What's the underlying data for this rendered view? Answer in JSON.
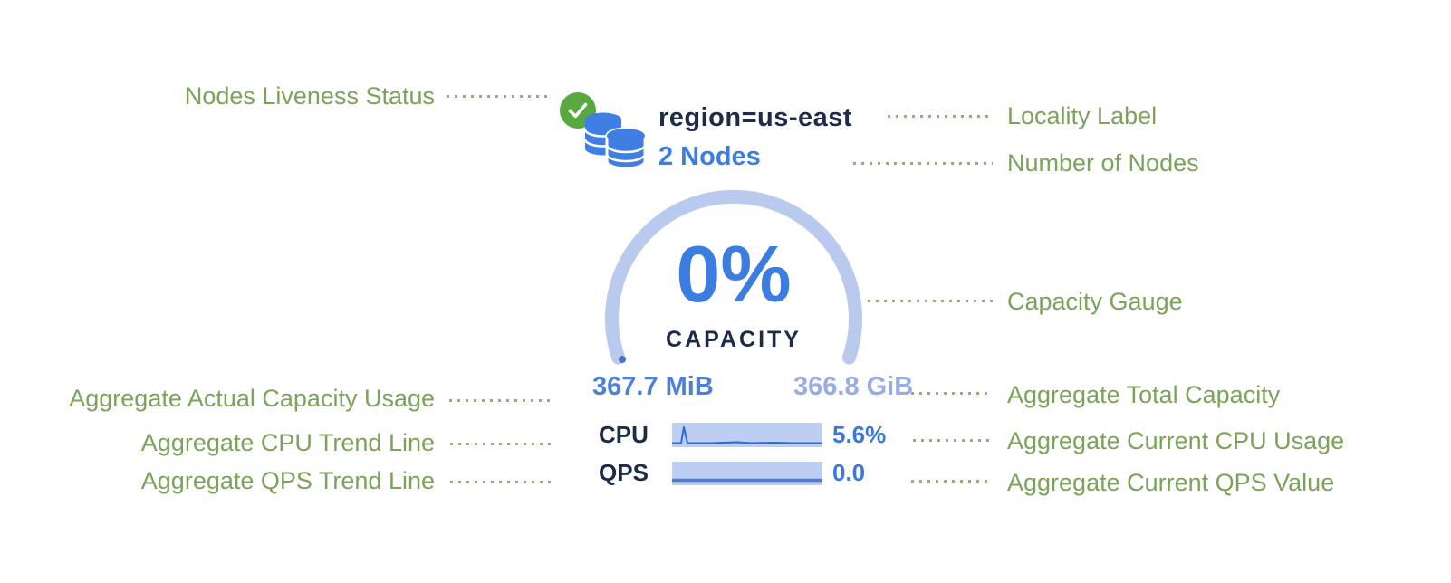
{
  "colors": {
    "annotation_green": "#7ba35a",
    "check_green": "#58a840",
    "icon_blue": "#3f7ee3",
    "navy": "#1c2b4a",
    "link_blue": "#3c7de2",
    "gauge_arc": "#bac9ee",
    "gauge_tick": "#4a74cc",
    "used_blue": "#4d80da",
    "total_blue": "#99ade4",
    "spark_fill": "#bccff2",
    "spark_line_cpu": "#2e68d9",
    "spark_line_qps": "#4a7bd9",
    "value_blue": "#3b78dc"
  },
  "node_card": {
    "liveness_icon": "green-checkmark-circle",
    "node_icon": "database-stack",
    "locality_label": "region=us-east",
    "nodes_link": "2 Nodes",
    "gauge": {
      "percent": "0%",
      "caption": "CAPACITY",
      "used": "367.7 MiB",
      "total": "366.8 GiB"
    },
    "cpu": {
      "label": "CPU",
      "value": "5.6%",
      "trend_points": [
        [
          0,
          22.5
        ],
        [
          10,
          22.5
        ],
        [
          13,
          5
        ],
        [
          17,
          22.5
        ],
        [
          42,
          22.5
        ],
        [
          72,
          21.5
        ],
        [
          88,
          22.5
        ],
        [
          112,
          22
        ],
        [
          134,
          22.5
        ],
        [
          166,
          22.5
        ]
      ]
    },
    "qps": {
      "label": "QPS",
      "value": "0.0",
      "trend_points": [
        [
          0,
          20.5
        ],
        [
          166,
          20.5
        ]
      ]
    }
  },
  "annotations": {
    "left": [
      {
        "label": "Nodes Liveness Status"
      },
      {
        "label": "Aggregate Actual Capacity Usage"
      },
      {
        "label": "Aggregate CPU Trend Line"
      },
      {
        "label": "Aggregate QPS Trend Line"
      }
    ],
    "right": [
      {
        "label": "Locality Label"
      },
      {
        "label": "Number of Nodes"
      },
      {
        "label": "Capacity Gauge"
      },
      {
        "label": "Aggregate Total Capacity"
      },
      {
        "label": "Aggregate Current CPU Usage"
      },
      {
        "label": "Aggregate Current QPS Value"
      }
    ]
  }
}
